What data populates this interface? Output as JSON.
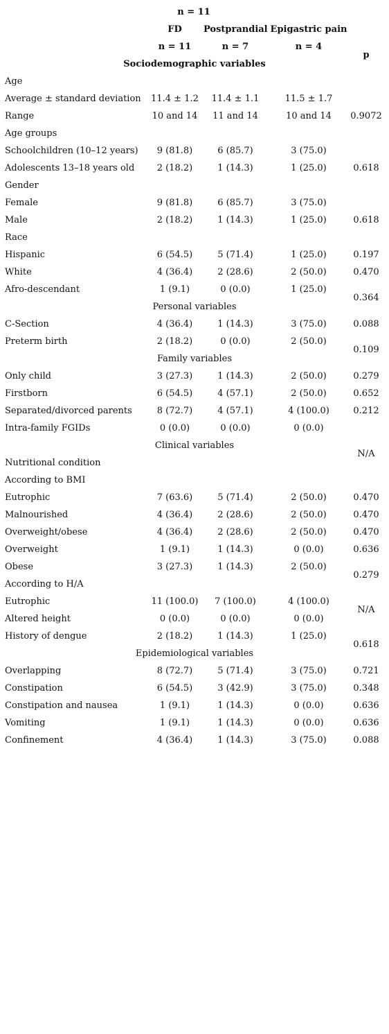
{
  "top_n": "n = 11",
  "header": {
    "col1": "FD",
    "col2": "Postprandial",
    "col3": "Epigastric pain",
    "n1": "n = 11",
    "n2": "n = 7",
    "n3": "n = 4",
    "p": "p",
    "first_section": "Sociodemographic variables"
  },
  "rows": [
    {
      "label": "Age",
      "v1": "",
      "v2": "",
      "v3": "",
      "p": ""
    },
    {
      "label": "Average ± standard deviation",
      "v1": "11.4 ± 1.2",
      "v2": "11.4 ± 1.1",
      "v3": "11.5 ± 1.7",
      "p": ""
    },
    {
      "label": "Range",
      "v1": "10 and 14",
      "v2": "11 and 14",
      "v3": "10 and 14",
      "p": "0.9072"
    },
    {
      "label": "Age groups",
      "v1": "",
      "v2": "",
      "v3": "",
      "p": ""
    },
    {
      "label": "Schoolchildren (10–12 years)",
      "v1": "9 (81.8)",
      "v2": "6 (85.7)",
      "v3": "3 (75.0)",
      "p": ""
    },
    {
      "label": "Adolescents 13–18 years old",
      "v1": "2 (18.2)",
      "v2": "1 (14.3)",
      "v3": "1 (25.0)",
      "p": "0.618"
    },
    {
      "label": "Gender",
      "v1": "",
      "v2": "",
      "v3": "",
      "p": ""
    },
    {
      "label": "Female",
      "v1": "9 (81.8)",
      "v2": "6 (85.7)",
      "v3": "3 (75.0)",
      "p": ""
    },
    {
      "label": "Male",
      "v1": "2 (18.2)",
      "v2": "1 (14.3)",
      "v3": "1 (25.0)",
      "p": "0.618"
    },
    {
      "label": "Race",
      "v1": "",
      "v2": "",
      "v3": "",
      "p": ""
    },
    {
      "label": "Hispanic",
      "v1": "6 (54.5)",
      "v2": "5 (71.4)",
      "v3": "1 (25.0)",
      "p": "0.197"
    },
    {
      "label": "White",
      "v1": "4 (36.4)",
      "v2": "2 (28.6)",
      "v3": "2 (50.0)",
      "p": "0.470"
    },
    {
      "label": "Afro-descendant",
      "v1": "1 (9.1)",
      "v2": "0 (0.0)",
      "v3": "1 (25.0)",
      "p": ""
    },
    {
      "section": "Personal variables"
    },
    {
      "label": "C-Section",
      "v1": "4 (36.4)",
      "v2": "1 (14.3)",
      "v3": "3 (75.0)",
      "p": "0.088"
    },
    {
      "label": "Preterm birth",
      "v1": "2 (18.2)",
      "v2": "0 (0.0)",
      "v3": "2 (50.0)",
      "p": ""
    },
    {
      "section": "Family variables"
    },
    {
      "label": "Only child",
      "v1": "3 (27.3)",
      "v2": "1 (14.3)",
      "v3": "2 (50.0)",
      "p": "0.279"
    },
    {
      "label": "Firstborn",
      "v1": "6 (54.5)",
      "v2": "4 (57.1)",
      "v3": "2 (50.0)",
      "p": "0.652"
    },
    {
      "label": "Separated/divorced parents",
      "v1": "8 (72.7)",
      "v2": "4 (57.1)",
      "v3": "4 (100.0)",
      "p": "0.212"
    },
    {
      "label": "Intra-family FGIDs",
      "v1": "0 (0.0)",
      "v2": "0 (0.0)",
      "v3": "0 (0.0)",
      "p": ""
    },
    {
      "section": "Clinical variables"
    },
    {
      "label": "Nutritional condition",
      "v1": "",
      "v2": "",
      "v3": "",
      "p": ""
    },
    {
      "label": "According to BMI",
      "v1": "",
      "v2": "",
      "v3": "",
      "p": ""
    },
    {
      "label": "Eutrophic",
      "v1": "7 (63.6)",
      "v2": "5 (71.4)",
      "v3": "2 (50.0)",
      "p": "0.470"
    },
    {
      "label": "Malnourished",
      "v1": "4 (36.4)",
      "v2": "2 (28.6)",
      "v3": "2 (50.0)",
      "p": "0.470"
    },
    {
      "label": "Overweight/obese",
      "v1": "4 (36.4)",
      "v2": "2 (28.6)",
      "v3": "2 (50.0)",
      "p": "0.470"
    },
    {
      "label": "Overweight",
      "v1": "1 (9.1)",
      "v2": "1 (14.3)",
      "v3": "0 (0.0)",
      "p": "0.636"
    },
    {
      "label": "Obese",
      "v1": "3 (27.3)",
      "v2": "1 (14.3)",
      "v3": "2 (50.0)",
      "p": ""
    },
    {
      "label": "According to H/A",
      "v1": "",
      "v2": "",
      "v3": "",
      "p": ""
    },
    {
      "label": "Eutrophic",
      "v1": "11 (100.0)",
      "v2": "7 (100.0)",
      "v3": "4 (100.0)",
      "p": ""
    },
    {
      "label": "Altered height",
      "v1": "0 (0.0)",
      "v2": "0 (0.0)",
      "v3": "0 (0.0)",
      "p": ""
    },
    {
      "label": "History of dengue",
      "v1": "2 (18.2)",
      "v2": "1 (14.3)",
      "v3": "1 (25.0)",
      "p": ""
    },
    {
      "section": "Epidemiological variables"
    },
    {
      "label": "Overlapping",
      "v1": "8 (72.7)",
      "v2": "5 (71.4)",
      "v3": "3 (75.0)",
      "p": "0.721"
    },
    {
      "label": "Constipation",
      "v1": "6 (54.5)",
      "v2": "3 (42.9)",
      "v3": "3 (75.0)",
      "p": "0.348"
    },
    {
      "label": "Constipation and nausea",
      "v1": "1 (9.1)",
      "v2": "1 (14.3)",
      "v3": "0 (0.0)",
      "p": "0.636"
    },
    {
      "label": "Vomiting",
      "v1": "1 (9.1)",
      "v2": "1 (14.3)",
      "v3": "0 (0.0)",
      "p": "0.636"
    },
    {
      "label": "Confinement",
      "v1": "4 (36.4)",
      "v2": "1 (14.3)",
      "v3": "3 (75.0)",
      "p": "0.088"
    }
  ],
  "merged_p": [
    "0.364",
    "0.109",
    "N/A",
    "0.279",
    "N/A",
    "0.618"
  ]
}
